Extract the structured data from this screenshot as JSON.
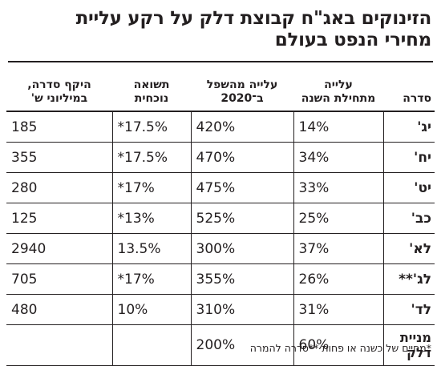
{
  "title": {
    "line1": "הזינוקים באג\"ח קבוצת דלק על רקע עליית",
    "line2": "מחירי הנפט בעולם"
  },
  "table": {
    "headers": {
      "series": "סדרה",
      "ytd": "עלייה\nמתחילת השנה",
      "from_low": "עלייה מהשפל\nב־2020",
      "yield": "תשואה\nנוכחית",
      "size": "היקף סדרה,\nבמיליוני ש'"
    },
    "rows": [
      {
        "series": "יג'",
        "ytd": "14%",
        "from_low": "420%",
        "yield": "17.5%*",
        "size": "185"
      },
      {
        "series": "יח'",
        "ytd": "34%",
        "from_low": "470%",
        "yield": "17.5%*",
        "size": "355"
      },
      {
        "series": "יט'",
        "ytd": "33%",
        "from_low": "475%",
        "yield": "17%*",
        "size": "280"
      },
      {
        "series": "כב'",
        "ytd": "25%",
        "from_low": "525%",
        "yield": "13%*",
        "size": "125"
      },
      {
        "series": "לא'",
        "ytd": "37%",
        "from_low": "300%",
        "yield": "13.5%",
        "size": "2940"
      },
      {
        "series": "לג'**",
        "ytd": "26%",
        "from_low": "355%",
        "yield": "17%*",
        "size": "705"
      },
      {
        "series": "לד'",
        "ytd": "31%",
        "from_low": "310%",
        "yield": "10%",
        "size": "480"
      },
      {
        "series": "מניית\nדלק",
        "ytd": "60%",
        "from_low": "200%",
        "yield": "",
        "size": ""
      }
    ]
  },
  "footnote": "*מחיים של כשנה או פחות **סדרה להמרה"
}
